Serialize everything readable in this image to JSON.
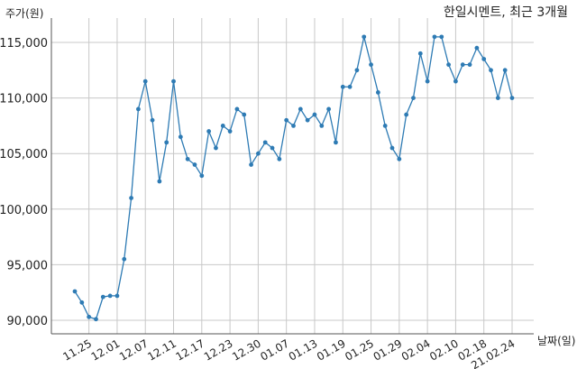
{
  "chart_data": {
    "type": "line",
    "title": "한일시멘트, 최근 3개월",
    "ylabel": "주가(원)",
    "xlabel": "날짜(일)",
    "ylim": [
      89000,
      117000
    ],
    "y_ticks": [
      90000,
      95000,
      100000,
      105000,
      110000,
      115000
    ],
    "y_tick_labels": [
      "90,000",
      "95,000",
      "100,000",
      "105,000",
      "110,000",
      "115,000"
    ],
    "x_tick_labels": [
      "11.25",
      "12.01",
      "12.07",
      "12.11",
      "12.17",
      "12.23",
      "12.30",
      "01.07",
      "01.13",
      "01.19",
      "01.25",
      "01.29",
      "02.04",
      "02.10",
      "02.18",
      "21.02.24"
    ],
    "x_tick_index": [
      2,
      6,
      10,
      14,
      18,
      22,
      26,
      30,
      34,
      38,
      42,
      46,
      50,
      54,
      58,
      62
    ],
    "grid": true,
    "line_color": "#2e7bb4",
    "grid_color": "#c8c8c8",
    "values": [
      92600,
      91600,
      90300,
      90100,
      92100,
      92200,
      92200,
      95500,
      101000,
      109000,
      111500,
      108000,
      102500,
      106000,
      111500,
      106500,
      104500,
      104000,
      103000,
      107000,
      105500,
      107500,
      107000,
      109000,
      108500,
      104000,
      105000,
      106000,
      105500,
      104500,
      108000,
      107500,
      109000,
      108000,
      108500,
      107500,
      109000,
      106000,
      111000,
      111000,
      112500,
      115500,
      113000,
      110500,
      107500,
      105500,
      104500,
      108500,
      110000,
      114000,
      111500,
      115500,
      115500,
      113000,
      111500,
      113000,
      113000,
      114500,
      113500,
      112500,
      110000,
      112500,
      110000
    ]
  }
}
